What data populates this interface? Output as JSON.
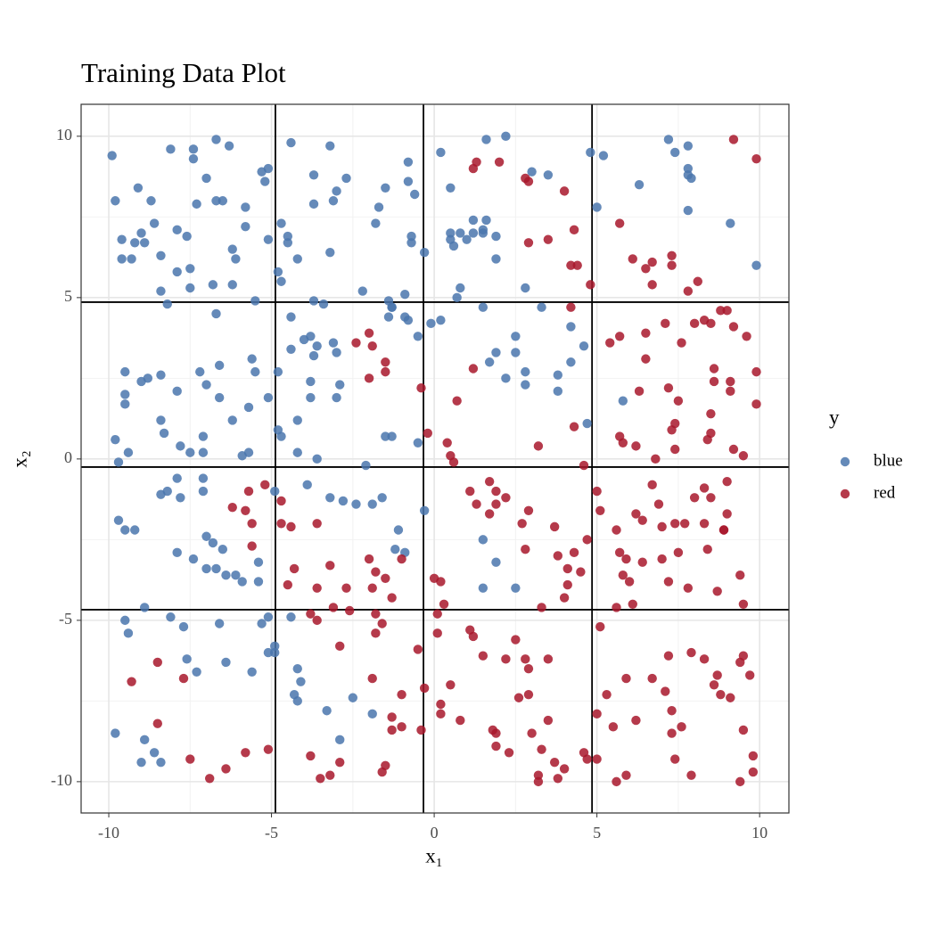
{
  "chart_data": {
    "type": "scatter",
    "title": "Training Data Plot",
    "x_label": "x₁",
    "y_label": "x₂",
    "xlim": [
      -10.85,
      10.9
    ],
    "ylim": [
      -10.97,
      10.99
    ],
    "xticks": [
      -10,
      -5,
      0,
      5,
      10
    ],
    "yticks": [
      -10,
      -5,
      0,
      5,
      10
    ],
    "grid": true,
    "legend_title": "y",
    "legend_position": "right",
    "vlines": [
      -4.88,
      -0.33,
      4.85
    ],
    "hlines": [
      4.86,
      -0.25,
      -4.67
    ],
    "series": [
      {
        "name": "blue",
        "color": "#4a76ad",
        "x": [
          -9.9,
          -9.8,
          -9.6,
          -9.6,
          -9.3,
          -9.2,
          -9.1,
          -9.0,
          -8.9,
          -8.7,
          -8.6,
          -8.4,
          -8.4,
          -8.2,
          -8.1,
          -7.9,
          -7.9,
          -7.6,
          -7.5,
          -7.5,
          -7.4,
          -7.4,
          -7.3,
          -7.0,
          -6.8,
          -6.7,
          -6.7,
          -6.7,
          -6.5,
          -6.3,
          -6.2,
          -6.2,
          -6.1,
          -5.8,
          -5.8,
          -5.5,
          -5.3,
          -5.2,
          -5.1,
          -5.1,
          -4.8,
          -4.7,
          -4.7,
          -4.5,
          -4.5,
          -4.4,
          -4.2,
          -3.7,
          -3.7,
          -3.7,
          -3.4,
          -3.2,
          -3.1,
          -3.0,
          -3.2,
          -2.7,
          -2.2,
          -1.8,
          -1.7,
          -1.5,
          -1.4,
          -1.3,
          -0.8,
          -0.8,
          -0.9,
          -0.7,
          -0.6,
          -0.7,
          -0.3,
          0.2,
          0.5,
          0.5,
          0.5,
          0.6,
          0.7,
          0.8,
          0.8,
          1.0,
          1.2,
          1.2,
          1.5,
          1.5,
          1.6,
          1.6,
          1.9,
          1.9,
          2.2,
          2.8,
          3.0,
          3.3,
          3.5,
          4.8,
          5.0,
          5.2,
          6.3,
          7.2,
          7.4,
          7.8,
          7.8,
          7.8,
          7.9,
          7.8,
          9.1,
          9.9,
          -9.8,
          -9.7,
          -9.5,
          -9.4,
          -9.5,
          -9.5,
          -9.0,
          -8.8,
          -8.4,
          -8.4,
          -8.3,
          -7.9,
          -7.8,
          -7.5,
          -7.2,
          -7.0,
          -7.1,
          -7.1,
          -6.6,
          -6.6,
          -6.2,
          -5.9,
          -5.7,
          -5.7,
          -5.6,
          -5.5,
          -5.1,
          -4.8,
          -4.8,
          -4.7,
          -4.4,
          -4.4,
          -4.0,
          -3.8,
          -3.7,
          -3.8,
          -3.6,
          -3.6,
          -4.2,
          -4.2,
          -3.8,
          -3.1,
          -3.0,
          -3.0,
          -2.9,
          -2.1,
          -1.5,
          -1.4,
          -1.3,
          -1.3,
          -0.9,
          -0.8,
          -0.5,
          -0.5,
          -0.1,
          0.2,
          1.5,
          1.7,
          1.9,
          2.5,
          2.5,
          2.8,
          2.8,
          2.2,
          3.8,
          3.8,
          4.2,
          4.2,
          4.6,
          4.7,
          5.8,
          -9.7,
          -9.5,
          -9.2,
          -8.4,
          -8.2,
          -7.9,
          -7.8,
          -7.9,
          -7.1,
          -7.1,
          -7.0,
          -6.8,
          -7.4,
          -7.0,
          -6.7,
          -6.5,
          -6.4,
          -6.1,
          -5.9,
          -5.4,
          -5.4,
          -4.9,
          -3.9,
          -3.2,
          -2.8,
          -2.4,
          -1.6,
          -1.9,
          -1.2,
          -1.1,
          -0.9,
          -0.3,
          1.5,
          1.9,
          1.5,
          2.5,
          -9.8,
          -8.9,
          -8.6,
          -9.0,
          -8.4,
          -8.9,
          -8.1,
          -7.7,
          -9.5,
          -9.4,
          -7.6,
          -7.3,
          -6.6,
          -6.4,
          -5.6,
          -5.3,
          -5.1,
          -5.1,
          -4.9,
          -4.9,
          -4.4,
          -4.2,
          -4.1,
          -4.3,
          -4.2,
          -3.3,
          -2.9,
          -2.5,
          -1.9
        ],
        "values": [
          9.4,
          8.0,
          6.8,
          6.2,
          6.2,
          6.7,
          8.4,
          7.0,
          6.7,
          8.0,
          7.3,
          5.2,
          6.3,
          4.8,
          9.6,
          7.1,
          5.8,
          6.9,
          5.9,
          5.3,
          9.6,
          9.3,
          7.9,
          8.7,
          5.4,
          4.5,
          9.9,
          8.0,
          8.0,
          9.7,
          5.4,
          6.5,
          6.2,
          7.8,
          7.2,
          4.9,
          8.9,
          8.6,
          9.0,
          6.8,
          5.8,
          5.5,
          7.3,
          6.7,
          6.9,
          9.8,
          6.2,
          8.8,
          7.9,
          4.9,
          4.8,
          9.7,
          8.0,
          8.3,
          6.4,
          8.7,
          5.2,
          7.3,
          7.8,
          8.4,
          4.9,
          4.7,
          9.2,
          8.6,
          5.1,
          6.9,
          8.2,
          6.7,
          6.4,
          9.5,
          8.4,
          7.0,
          6.8,
          6.6,
          5.0,
          5.3,
          7.0,
          6.8,
          7.4,
          7.0,
          7.0,
          7.1,
          7.4,
          9.9,
          6.9,
          6.2,
          10.0,
          5.3,
          8.9,
          4.7,
          8.8,
          9.5,
          7.8,
          9.4,
          8.5,
          9.9,
          9.5,
          9.7,
          9.0,
          8.8,
          8.7,
          7.7,
          7.3,
          6.0,
          0.6,
          -0.1,
          2.7,
          0.2,
          2.0,
          1.7,
          2.4,
          2.5,
          2.6,
          1.2,
          0.8,
          2.1,
          0.4,
          0.2,
          2.7,
          2.3,
          0.7,
          0.2,
          2.9,
          1.9,
          1.2,
          0.1,
          0.2,
          1.6,
          3.1,
          2.7,
          1.9,
          2.7,
          0.9,
          0.7,
          4.4,
          3.4,
          3.7,
          3.8,
          3.2,
          2.4,
          3.5,
          0.0,
          1.2,
          0.2,
          1.9,
          3.6,
          3.3,
          1.9,
          2.3,
          -0.2,
          0.7,
          4.4,
          4.7,
          0.7,
          4.4,
          4.3,
          3.8,
          0.5,
          4.2,
          4.3,
          4.7,
          3.0,
          3.3,
          3.8,
          3.3,
          2.3,
          2.7,
          2.5,
          2.6,
          2.1,
          3.0,
          4.1,
          3.5,
          1.1,
          1.8,
          -1.9,
          -2.2,
          -2.2,
          -1.1,
          -1.0,
          -2.9,
          -1.2,
          -0.6,
          -0.6,
          -1.0,
          -2.4,
          -2.6,
          -3.1,
          -3.4,
          -3.4,
          -2.8,
          -3.6,
          -3.6,
          -3.8,
          -3.2,
          -3.8,
          -1.0,
          -0.8,
          -1.2,
          -1.3,
          -1.4,
          -1.2,
          -1.4,
          -2.8,
          -2.2,
          -2.9,
          -1.6,
          -2.5,
          -3.2,
          -4.0,
          -4.0,
          -8.5,
          -8.7,
          -9.1,
          -9.4,
          -9.4,
          -4.6,
          -4.9,
          -5.2,
          -5.0,
          -5.4,
          -6.2,
          -6.6,
          -5.1,
          -6.3,
          -6.6,
          -5.1,
          -4.9,
          -6.0,
          -5.8,
          -6.0,
          -4.9,
          -6.5,
          -6.9,
          -7.3,
          -7.5,
          -7.8,
          -8.7,
          -7.4,
          -7.9
        ]
      },
      {
        "name": "red",
        "color": "#a8182b",
        "x": [
          1.3,
          1.2,
          2.0,
          2.8,
          2.9,
          2.9,
          3.5,
          4.0,
          4.2,
          4.3,
          4.4,
          4.8,
          5.7,
          6.1,
          6.5,
          6.7,
          6.7,
          7.3,
          7.3,
          7.8,
          8.1,
          9.2,
          9.9,
          -2.4,
          -2.0,
          -1.9,
          -1.5,
          -1.5,
          -2.0,
          -0.4,
          -0.2,
          0.4,
          0.5,
          0.6,
          0.7,
          1.2,
          3.2,
          4.3,
          4.6,
          4.2,
          5.4,
          5.7,
          6.3,
          6.5,
          6.5,
          7.1,
          7.2,
          7.4,
          7.5,
          7.6,
          8.0,
          8.3,
          8.6,
          8.8,
          8.5,
          8.6,
          9.0,
          9.2,
          9.1,
          9.1,
          9.6,
          9.5,
          9.9,
          9.9,
          9.2,
          8.4,
          8.5,
          8.5,
          7.3,
          6.8,
          6.2,
          5.8,
          5.7,
          7.4,
          -6.2,
          -5.7,
          -5.8,
          -5.6,
          -5.6,
          -5.2,
          -4.7,
          -4.7,
          -4.4,
          -4.3,
          -4.5,
          -3.6,
          -3.6,
          -3.2,
          -2.7,
          -3.1,
          -2.6,
          -2.0,
          -1.9,
          -1.8,
          -1.5,
          -1.3,
          -1.0,
          0.0,
          0.2,
          0.3,
          1.1,
          1.3,
          1.7,
          1.7,
          1.9,
          1.9,
          2.2,
          2.9,
          2.7,
          2.8,
          3.3,
          3.7,
          3.8,
          4.0,
          4.1,
          4.3,
          4.5,
          4.1,
          4.7,
          5.0,
          5.1,
          5.6,
          5.7,
          5.8,
          5.9,
          6.0,
          6.2,
          6.4,
          6.4,
          6.7,
          6.9,
          7.0,
          7.0,
          7.2,
          7.4,
          7.5,
          7.7,
          7.8,
          8.0,
          8.3,
          8.3,
          8.4,
          8.5,
          8.7,
          8.9,
          9.0,
          8.9,
          9.0,
          9.4,
          9.5,
          6.1,
          5.6,
          -9.3,
          -8.5,
          -8.5,
          -7.7,
          -7.5,
          -6.9,
          -6.4,
          -5.8,
          -5.1,
          -3.8,
          -3.8,
          -3.6,
          -3.5,
          -3.2,
          -2.9,
          -2.9,
          -1.8,
          -1.8,
          -1.9,
          -1.6,
          -1.6,
          -1.5,
          -1.3,
          -1.3,
          -1.0,
          -1.0,
          -0.5,
          -0.4,
          -0.3,
          0.1,
          0.1,
          0.2,
          0.2,
          0.5,
          0.8,
          1.1,
          1.2,
          1.5,
          1.8,
          1.9,
          1.9,
          2.2,
          2.3,
          2.5,
          2.6,
          2.8,
          2.9,
          3.0,
          2.9,
          3.2,
          3.2,
          3.3,
          3.5,
          3.5,
          3.7,
          3.8,
          4.0,
          4.6,
          4.7,
          5.0,
          5.0,
          5.1,
          5.3,
          5.5,
          5.6,
          5.9,
          5.9,
          6.2,
          6.7,
          7.1,
          7.2,
          7.3,
          7.3,
          7.4,
          7.6,
          7.9,
          7.9,
          8.3,
          8.6,
          8.7,
          8.8,
          9.1,
          9.4,
          9.5,
          9.5,
          9.4,
          9.7,
          9.8,
          9.8
        ],
        "values": [
          9.2,
          9.0,
          9.2,
          8.7,
          8.6,
          6.7,
          6.8,
          8.3,
          6.0,
          7.1,
          6.0,
          5.4,
          7.3,
          6.2,
          5.9,
          6.1,
          5.4,
          6.3,
          6.0,
          5.2,
          5.5,
          9.9,
          9.3,
          3.6,
          3.9,
          3.5,
          3.0,
          2.7,
          2.5,
          2.2,
          0.8,
          0.5,
          0.1,
          -0.1,
          1.8,
          2.8,
          0.4,
          1.0,
          -0.2,
          4.7,
          3.6,
          3.8,
          2.1,
          3.9,
          3.1,
          4.2,
          2.2,
          1.1,
          1.8,
          3.6,
          4.2,
          4.3,
          2.4,
          4.6,
          4.2,
          2.8,
          4.6,
          4.1,
          2.1,
          2.4,
          3.8,
          0.1,
          2.7,
          1.7,
          0.3,
          0.6,
          1.4,
          0.8,
          0.9,
          0.0,
          0.4,
          0.5,
          0.7,
          0.3,
          -1.5,
          -1.0,
          -1.6,
          -2.0,
          -2.7,
          -0.8,
          -1.3,
          -2.0,
          -2.1,
          -3.4,
          -3.9,
          -2.0,
          -4.0,
          -3.3,
          -4.0,
          -4.6,
          -4.7,
          -3.1,
          -4.0,
          -3.5,
          -3.7,
          -4.3,
          -3.1,
          -3.7,
          -3.8,
          -4.5,
          -1.0,
          -1.4,
          -0.7,
          -1.7,
          -1.0,
          -1.4,
          -1.2,
          -1.6,
          -2.0,
          -2.8,
          -4.6,
          -2.1,
          -3.0,
          -4.3,
          -3.4,
          -2.9,
          -3.5,
          -3.9,
          -2.5,
          -1.0,
          -1.6,
          -2.2,
          -2.9,
          -3.6,
          -3.1,
          -3.8,
          -1.7,
          -1.9,
          -3.2,
          -0.8,
          -1.4,
          -3.1,
          -2.1,
          -3.8,
          -2.0,
          -2.9,
          -2.0,
          -4.0,
          -1.2,
          -0.9,
          -2.0,
          -2.8,
          -1.2,
          -4.1,
          -2.2,
          -0.7,
          -2.2,
          -1.7,
          -3.6,
          -4.5,
          -4.5,
          -4.6,
          -6.9,
          -6.3,
          -8.2,
          -6.8,
          -9.3,
          -9.9,
          -9.6,
          -9.1,
          -9.0,
          -4.8,
          -9.2,
          -5.0,
          -9.9,
          -9.8,
          -5.8,
          -9.4,
          -5.4,
          -4.8,
          -6.8,
          -5.1,
          -9.7,
          -9.5,
          -8.0,
          -8.4,
          -7.3,
          -8.3,
          -5.9,
          -8.4,
          -7.1,
          -5.4,
          -4.8,
          -7.6,
          -7.9,
          -7.0,
          -8.1,
          -5.3,
          -5.5,
          -6.1,
          -8.4,
          -8.5,
          -8.9,
          -6.2,
          -9.1,
          -5.6,
          -7.4,
          -6.2,
          -7.3,
          -8.5,
          -6.5,
          -9.8,
          -10.0,
          -9.0,
          -8.1,
          -6.2,
          -9.4,
          -9.9,
          -9.6,
          -9.1,
          -9.3,
          -7.9,
          -9.3,
          -5.2,
          -7.3,
          -8.3,
          -10.0,
          -9.8,
          -6.8,
          -8.1,
          -6.8,
          -7.2,
          -6.1,
          -7.8,
          -8.5,
          -9.3,
          -8.3,
          -9.8,
          -6.0,
          -6.2,
          -7.0,
          -6.7,
          -7.3,
          -7.4,
          -6.3,
          -6.1,
          -8.4,
          -10.0,
          -6.7,
          -9.2,
          -9.7
        ]
      }
    ]
  }
}
